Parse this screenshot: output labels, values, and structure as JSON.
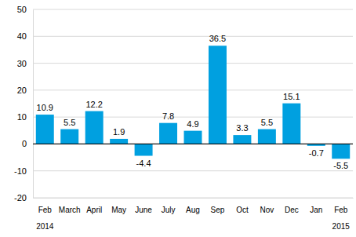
{
  "chart_data": {
    "type": "bar",
    "categories": [
      "Feb",
      "March",
      "April",
      "May",
      "June",
      "July",
      "Aug",
      "Sep",
      "Oct",
      "Nov",
      "Dec",
      "Jan",
      "Feb"
    ],
    "values": [
      10.9,
      5.5,
      12.2,
      1.9,
      -4.4,
      7.8,
      4.9,
      36.5,
      3.3,
      5.5,
      15.1,
      -0.7,
      -5.5
    ],
    "color": "#00a0e0",
    "ylim": [
      -20,
      50
    ],
    "yticks": [
      -20,
      -10,
      0,
      10,
      20,
      30,
      40,
      50
    ],
    "grid": true,
    "data_labels": true,
    "annotations": [
      {
        "text": "2014",
        "category": 0
      },
      {
        "text": "2015",
        "category": 12
      }
    ]
  }
}
